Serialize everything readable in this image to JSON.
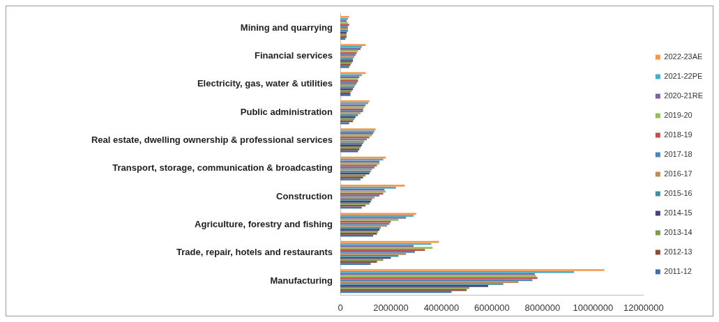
{
  "chart_data": {
    "type": "bar",
    "orientation": "horizontal",
    "categories": [
      "Mining and quarrying",
      "Financial services",
      "Electricity, gas, water & utilities",
      "Public administration",
      "Real estate, dwelling ownership & professional services",
      "Transport, storage, communication & broadcasting",
      "Construction",
      "Agriculture, forestry and fishing",
      "Trade, repair, hotels and restaurants",
      "Manufacturing"
    ],
    "series": [
      {
        "name": "2022-23AE",
        "color": "#f79646",
        "values": [
          350000,
          1000000,
          1000000,
          1150000,
          1400000,
          1800000,
          2550000,
          3000000,
          3900000,
          10450000
        ]
      },
      {
        "name": "2021-22PE",
        "color": "#4bacc6",
        "values": [
          300000,
          850000,
          850000,
          1100000,
          1350000,
          1700000,
          2200000,
          2900000,
          3600000,
          9250000
        ]
      },
      {
        "name": "2020-21RE",
        "color": "#8064a2",
        "values": [
          250000,
          800000,
          750000,
          1000000,
          1300000,
          1550000,
          1750000,
          2600000,
          2900000,
          7700000
        ]
      },
      {
        "name": "2019-20",
        "color": "#9bbb59",
        "values": [
          300000,
          700000,
          700000,
          950000,
          1250000,
          1550000,
          1800000,
          2300000,
          3650000,
          7750000
        ]
      },
      {
        "name": "2018-19",
        "color": "#c0504d",
        "values": [
          350000,
          650000,
          700000,
          900000,
          1150000,
          1450000,
          1700000,
          2000000,
          3350000,
          7800000
        ]
      },
      {
        "name": "2017-18",
        "color": "#4f81bd",
        "values": [
          300000,
          600000,
          650000,
          900000,
          1050000,
          1350000,
          1550000,
          1950000,
          2950000,
          7600000
        ]
      },
      {
        "name": "2016-17",
        "color": "#c08a5a",
        "values": [
          300000,
          550000,
          600000,
          800000,
          950000,
          1250000,
          1350000,
          1850000,
          2600000,
          7050000
        ]
      },
      {
        "name": "2015-16",
        "color": "#3f8f9f",
        "values": [
          300000,
          500000,
          550000,
          700000,
          900000,
          1200000,
          1250000,
          1600000,
          2300000,
          6450000
        ]
      },
      {
        "name": "2014-15",
        "color": "#4b3f7a",
        "values": [
          250000,
          500000,
          500000,
          600000,
          850000,
          1150000,
          1200000,
          1550000,
          2000000,
          5850000
        ]
      },
      {
        "name": "2013-14",
        "color": "#7f9a48",
        "values": [
          250000,
          450000,
          450000,
          550000,
          800000,
          1000000,
          1150000,
          1500000,
          1700000,
          5100000
        ]
      },
      {
        "name": "2012-13",
        "color": "#8b4a3a",
        "values": [
          250000,
          400000,
          400000,
          500000,
          750000,
          900000,
          1000000,
          1450000,
          1450000,
          5000000
        ]
      },
      {
        "name": "2011-12",
        "color": "#3f6fa8",
        "values": [
          200000,
          350000,
          400000,
          350000,
          700000,
          800000,
          850000,
          1300000,
          1200000,
          4400000
        ]
      }
    ],
    "xlim": [
      0,
      12000000
    ],
    "xticks": [
      0,
      2000000,
      4000000,
      6000000,
      8000000,
      10000000,
      12000000
    ],
    "grid": false,
    "legend": "right"
  }
}
